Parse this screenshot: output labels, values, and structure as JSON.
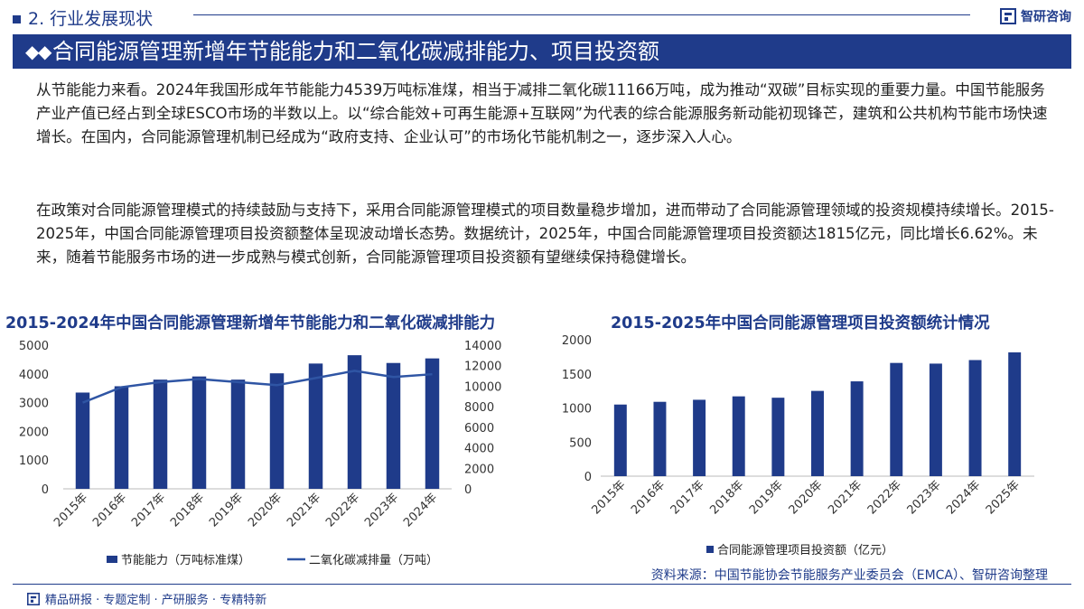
{
  "header": {
    "section": "2. 行业发展现状",
    "logo_text": "智研咨询"
  },
  "banner": {
    "title": "合同能源管理新增年节能能力和二氧化碳减排能力、项目投资额"
  },
  "paragraphs": {
    "p1": "从节能能力来看。2024年我国形成年节能能力4539万吨标准煤，相当于减排二氧化碳11166万吨，成为推动“双碳”目标实现的重要力量。中国节能服务产业产值已经占到全球ESCO市场的半数以上。以“综合能效+可再生能源+互联网”为代表的综合能源服务新动能初现锋芒，建筑和公共机构节能市场快速增长。在国内，合同能源管理机制已经成为“政府支持、企业认可”的市场化节能机制之一，逐步深入人心。",
    "p2": "在政策对合同能源管理模式的持续鼓励与支持下，采用合同能源管理模式的项目数量稳步增加，进而带动了合同能源管理领域的投资规模持续增长。2015-2025年，中国合同能源管理项目投资额整体呈现波动增长态势。数据统计，2025年，中国合同能源管理项目投资额达1815亿元，同比增长6.62%。未来，随着节能服务市场的进一步成熟与模式创新，合同能源管理项目投资额有望继续保持稳健增长。"
  },
  "chart_data": [
    {
      "type": "bar",
      "title": "2015-2024年中国合同能源管理新增年节能能力和二氧化碳减排能力",
      "categories": [
        "2015年",
        "2016年",
        "2017年",
        "2018年",
        "2019年",
        "2020年",
        "2021年",
        "2022年",
        "2023年",
        "2024年"
      ],
      "series": [
        {
          "name": "节能能力（万吨标准煤）",
          "type": "bar",
          "axis": "left",
          "values": [
            3350,
            3570,
            3800,
            3910,
            3800,
            4020,
            4360,
            4650,
            4380,
            4539
          ],
          "color": "#1f3b8a"
        },
        {
          "name": "二氧化碳减排量（万吨）",
          "type": "line",
          "axis": "right",
          "values": [
            8400,
            9900,
            10400,
            10700,
            10400,
            10100,
            10800,
            11500,
            10900,
            11166
          ],
          "color": "#2f55a4"
        }
      ],
      "yleft": {
        "range": [
          0,
          5000
        ],
        "ticks": [
          "0",
          "1000",
          "2000",
          "3000",
          "4000",
          "5000"
        ]
      },
      "yright": {
        "range": [
          0,
          14000
        ],
        "ticks": [
          "0",
          "2000",
          "4000",
          "6000",
          "8000",
          "10000",
          "12000",
          "14000"
        ]
      },
      "grid": false,
      "legend_position": "bottom"
    },
    {
      "type": "bar",
      "title": "2015-2025年中国合同能源管理项目投资额统计情况",
      "categories": [
        "2015年",
        "2016年",
        "2017年",
        "2018年",
        "2019年",
        "2020年",
        "2021年",
        "2022年",
        "2023年",
        "2024年",
        "2025年"
      ],
      "series": [
        {
          "name": "合同能源管理项目投资额（亿元）",
          "values": [
            1050,
            1090,
            1120,
            1170,
            1150,
            1250,
            1390,
            1660,
            1650,
            1702,
            1815
          ],
          "color": "#1f3b8a"
        }
      ],
      "yleft": {
        "range": [
          0,
          2000
        ],
        "ticks": [
          "0",
          "500",
          "1000",
          "1500",
          "2000"
        ]
      },
      "grid": false,
      "legend_position": "bottom"
    }
  ],
  "footer": {
    "source": "资料来源：中国节能协会节能服务产业委员会（EMCA）、智研咨询整理",
    "slogan": "精品研报 · 专题定制 · 产研服务 · 专精特新"
  }
}
